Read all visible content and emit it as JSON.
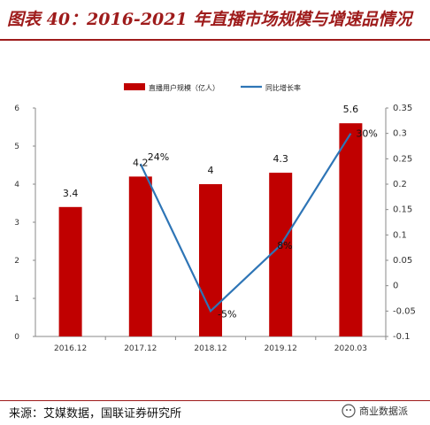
{
  "header": {
    "title": "图表 40：2016-2021 年直播市场规模与增速品情况"
  },
  "footer": {
    "source": "来源：艾媒数据，国联证券研究所",
    "watermark": "商业数据派"
  },
  "colors": {
    "bar": "#c00000",
    "line": "#2e75b6",
    "title": "#9e1b1b"
  },
  "chart_data": {
    "type": "bar",
    "categories": [
      "2016.12",
      "2017.12",
      "2018.12",
      "2019.12",
      "2020.03"
    ],
    "y_ticks": [
      "0",
      "1",
      "2",
      "3",
      "4",
      "5",
      "6"
    ],
    "y2_ticks": [
      "-0.1",
      "-0.05",
      "0",
      "0.05",
      "0.1",
      "0.15",
      "0.2",
      "0.25",
      "0.3",
      "0.35"
    ],
    "ylim": [
      0,
      6
    ],
    "y2lim": [
      -0.1,
      0.35
    ],
    "legend_position": "top",
    "series": [
      {
        "name": "直播用户规模（亿人）",
        "type": "bar",
        "axis": "left",
        "values": [
          3.4,
          4.2,
          4,
          4.3,
          5.6
        ],
        "labels": [
          "3.4",
          "4.2",
          "4",
          "4.3",
          "5.6"
        ]
      },
      {
        "name": "同比增长率",
        "type": "line",
        "axis": "right",
        "values": [
          null,
          0.24,
          -0.05,
          0.08,
          0.3
        ],
        "labels": [
          "",
          "24%",
          "-5%",
          "8%",
          "30%"
        ]
      }
    ]
  }
}
